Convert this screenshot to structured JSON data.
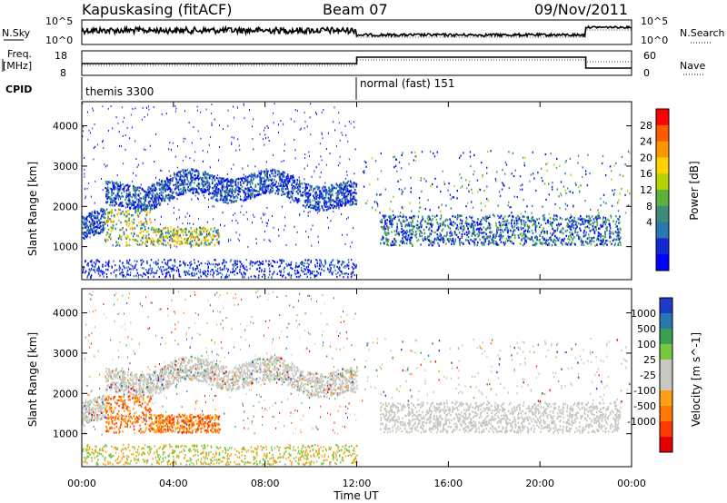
{
  "header": {
    "station": "Kapuskasing (fitACF)",
    "beam": "Beam 07",
    "date": "09/Nov/2011"
  },
  "noise_panel": {
    "left_label": "N.Sky",
    "right_label": "N.Search",
    "left_ticks": [
      "10^5",
      "10^0"
    ],
    "right_ticks": [
      "10^5",
      "10^0"
    ]
  },
  "freq_panel": {
    "left_label_1": "Freq.",
    "left_label_2": "[MHz]",
    "right_label": "Nave",
    "left_ticks": [
      "18",
      "8"
    ],
    "right_ticks": [
      "60",
      "0"
    ]
  },
  "cpid_panel": {
    "label": "CPID",
    "segments": [
      {
        "name": "themis 3300",
        "start_hour": 0,
        "end_hour": 12
      },
      {
        "name": "normal (fast) 151",
        "start_hour": 12,
        "end_hour": 24
      }
    ]
  },
  "x_axis": {
    "label": "Time UT",
    "ticks": [
      "00:00",
      "04:00",
      "08:00",
      "12:00",
      "16:00",
      "20:00",
      "00:00"
    ]
  },
  "chart_data": [
    {
      "type": "heatmap",
      "name": "power",
      "ylabel": "Slant Range [km]",
      "yticks": [
        1000,
        2000,
        3000,
        4000
      ],
      "ylim": [
        180,
        4600
      ],
      "xlim_hours": [
        0,
        24
      ],
      "colorbar": {
        "label": "Power [dB]",
        "ticks": [
          "28",
          "24",
          "20",
          "16",
          "12",
          "8",
          "4"
        ],
        "colors": [
          "#ff0000",
          "#ff5a00",
          "#ff9600",
          "#ffd200",
          "#b4d200",
          "#5ab43c",
          "#3c8c78",
          "#2878b4",
          "#1428d2",
          "#0000ff"
        ]
      }
    },
    {
      "type": "heatmap",
      "name": "velocity",
      "ylabel": "Slant Range [km]",
      "yticks": [
        1000,
        2000,
        3000,
        4000
      ],
      "ylim": [
        180,
        4600
      ],
      "xlim_hours": [
        0,
        24
      ],
      "colorbar": {
        "label": "Velocity [m s^-1]",
        "ticks": [
          "1000",
          "500",
          "100",
          "25",
          "-25",
          "-100",
          "-500",
          "-1000"
        ],
        "colors": [
          "#1e3cc8",
          "#2878b4",
          "#3ca050",
          "#78c83c",
          "#c8c8c0",
          "#c8c8c0",
          "#ffa014",
          "#ff7800",
          "#ff3c00",
          "#e60000"
        ]
      }
    }
  ]
}
